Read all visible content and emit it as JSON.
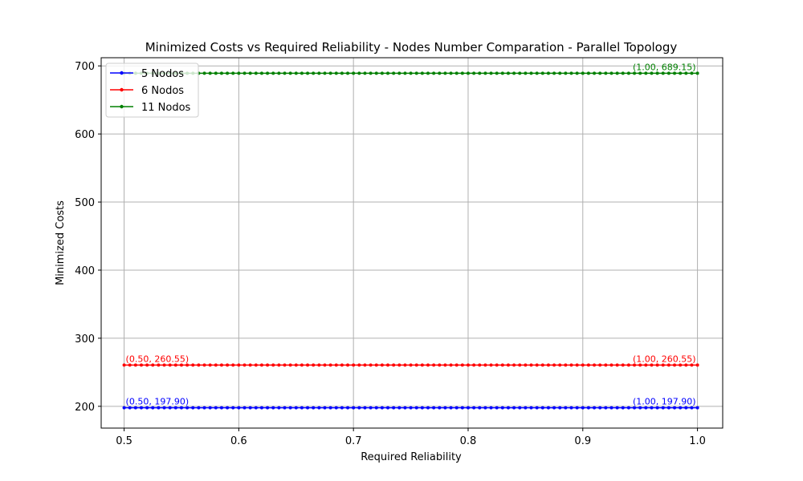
{
  "chart_data": {
    "type": "line",
    "title": "Minimized Costs vs Required Reliability - Nodes Number Comparation - Parallel Topology",
    "xlabel": "Required Reliability",
    "ylabel": "Minimized Costs",
    "xlim": [
      0.48,
      1.022
    ],
    "ylim": [
      168,
      712
    ],
    "xticks": [
      0.5,
      0.6,
      0.7,
      0.8,
      0.9,
      1.0
    ],
    "xtick_labels": [
      "0.5",
      "0.6",
      "0.7",
      "0.8",
      "0.9",
      "1.0"
    ],
    "yticks": [
      200,
      300,
      400,
      500,
      600,
      700
    ],
    "ytick_labels": [
      "200",
      "300",
      "400",
      "500",
      "600",
      "700"
    ],
    "grid": true,
    "legend_position": "top-left",
    "x_start": 0.5,
    "x_end": 1.0,
    "x_step": 0.005,
    "series": [
      {
        "name": "5 Nodos",
        "color": "#0000ff",
        "value": 197.9,
        "start_label": "(0.50, 197.90)",
        "end_label": "(1.00, 197.90)"
      },
      {
        "name": "6 Nodos",
        "color": "#ff0000",
        "value": 260.55,
        "start_label": "(0.50, 260.55)",
        "end_label": "(1.00, 260.55)"
      },
      {
        "name": "11 Nodos",
        "color": "#008000",
        "value": 689.15,
        "start_label": "",
        "end_label": "(1.00, 689.15)"
      }
    ]
  }
}
